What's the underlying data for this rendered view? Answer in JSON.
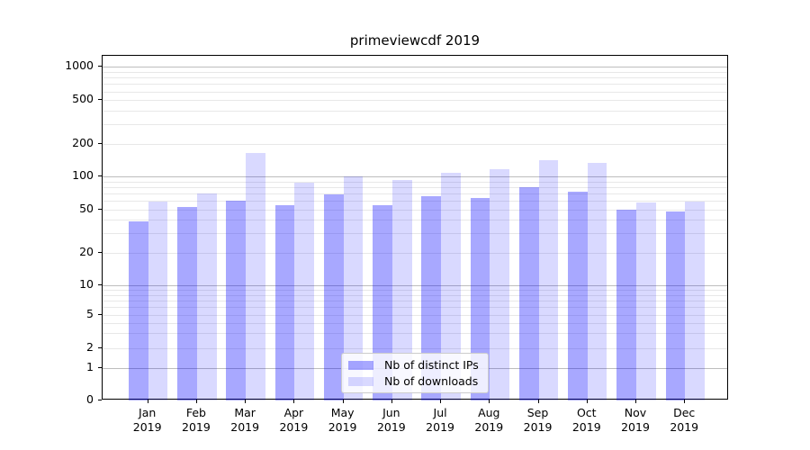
{
  "title": "primeviewcdf 2019",
  "chart_data": {
    "type": "bar",
    "title": "primeviewcdf 2019",
    "categories": [
      "Jan",
      "Feb",
      "Mar",
      "Apr",
      "May",
      "Jun",
      "Jul",
      "Aug",
      "Sep",
      "Oct",
      "Nov",
      "Dec"
    ],
    "year_label": "2019",
    "series": [
      {
        "name": "Nb of distinct IPs",
        "color": "rgba(0,0,255,0.34)",
        "values": [
          39,
          52,
          60,
          54,
          69,
          54,
          66,
          63,
          80,
          73,
          50,
          48
        ]
      },
      {
        "name": "Nb of downloads",
        "color": "rgba(0,0,255,0.15)",
        "values": [
          59,
          70,
          165,
          88,
          100,
          92,
          108,
          116,
          140,
          133,
          58,
          59
        ]
      }
    ],
    "y_ticks": [
      0,
      1,
      2,
      5,
      10,
      20,
      50,
      100,
      200,
      500,
      1000
    ],
    "yscale": "symlog",
    "ylim": [
      0,
      1260
    ],
    "xlabel": "",
    "ylabel": "",
    "grid": true,
    "legend_position": "lower center"
  },
  "colors": {
    "grid_major": "#bdbdbd",
    "grid_minor": "#e8e8e8",
    "spine": "#000000",
    "background": "#ffffff",
    "legend_border": "#cccccc",
    "legend_bg": "rgba(255,255,255,0.8)"
  }
}
